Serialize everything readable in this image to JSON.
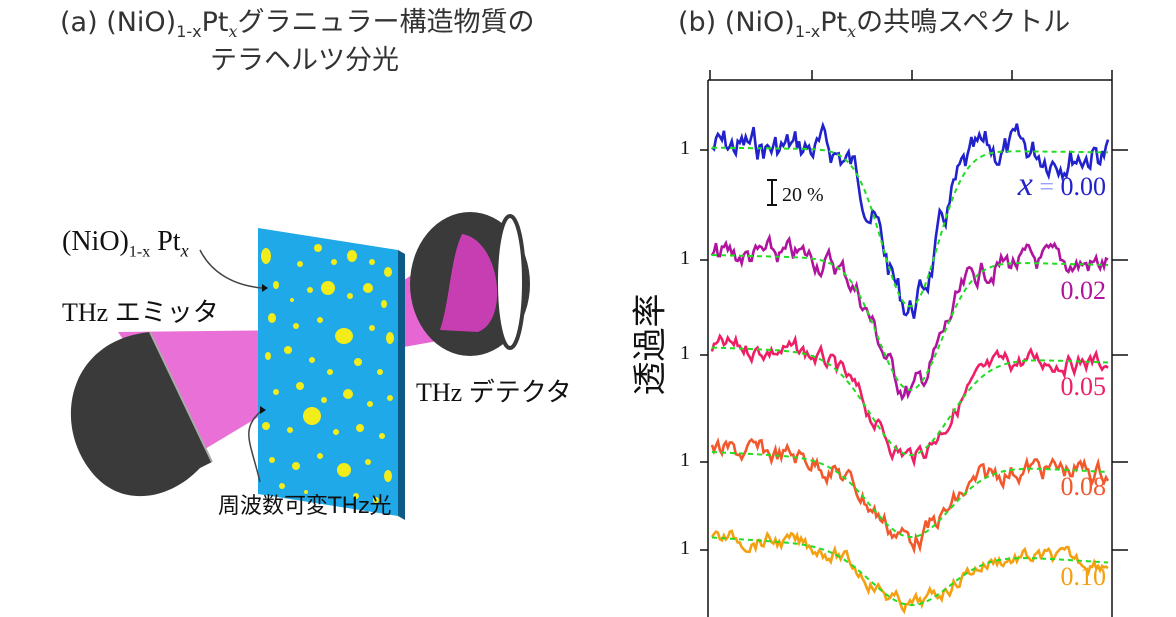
{
  "panel_a": {
    "title_prefix": "(a) (NiO)",
    "title_sub": "1-x",
    "title_mid": "Pt",
    "title_sub2": "x",
    "title_suffix": "グラニュラー構造物質の",
    "title_line2": "テラヘルツ分光",
    "sample_label_prefix": "(NiO)",
    "sample_label_sub": "1-x",
    "sample_label_mid": " Pt",
    "sample_label_sub2": "x",
    "emitter_label": "THz エミッタ",
    "detector_label": "THz デテクタ",
    "light_label": "周波数可変THz光",
    "colors": {
      "substrate": "#1fa9e8",
      "grains": "#f2ec1a",
      "beam": "#e040c8",
      "device": "#3a3a3a"
    }
  },
  "panel_b": {
    "title_prefix": "(b) (NiO)",
    "title_sub": "1-x",
    "title_mid": "Pt",
    "title_sub2": "x",
    "title_suffix": "の共鳴スペクトル",
    "ylabel": "透過率",
    "scale_bar_label": "20 %",
    "x_var": "x",
    "x_eq": " = ",
    "tick_label": "1"
  },
  "chart_data": {
    "type": "line",
    "title": "(b) (NiO)1-xPtxの共鳴スペクトル",
    "ylabel": "透過率",
    "xlabel": "",
    "scale_bar": "20 %",
    "offset_baselines_label": "1",
    "series": [
      {
        "name": "0.00",
        "color": "#2222cc",
        "baseline": 1,
        "dip_depth": 0.68,
        "dip_width": 0.07,
        "noise": 0.12
      },
      {
        "name": "0.02",
        "color": "#b0139e",
        "baseline": 1,
        "dip_depth": 0.52,
        "dip_width": 0.08,
        "noise": 0.08
      },
      {
        "name": "0.05",
        "color": "#ee1f66",
        "baseline": 1,
        "dip_depth": 0.4,
        "dip_width": 0.1,
        "noise": 0.06
      },
      {
        "name": "0.08",
        "color": "#f2582c",
        "baseline": 1,
        "dip_depth": 0.3,
        "dip_width": 0.1,
        "noise": 0.07
      },
      {
        "name": "0.10",
        "color": "#f5a010",
        "baseline": 1,
        "dip_depth": 0.22,
        "dip_width": 0.1,
        "noise": 0.05
      }
    ],
    "fit_color": "#22dd22"
  }
}
